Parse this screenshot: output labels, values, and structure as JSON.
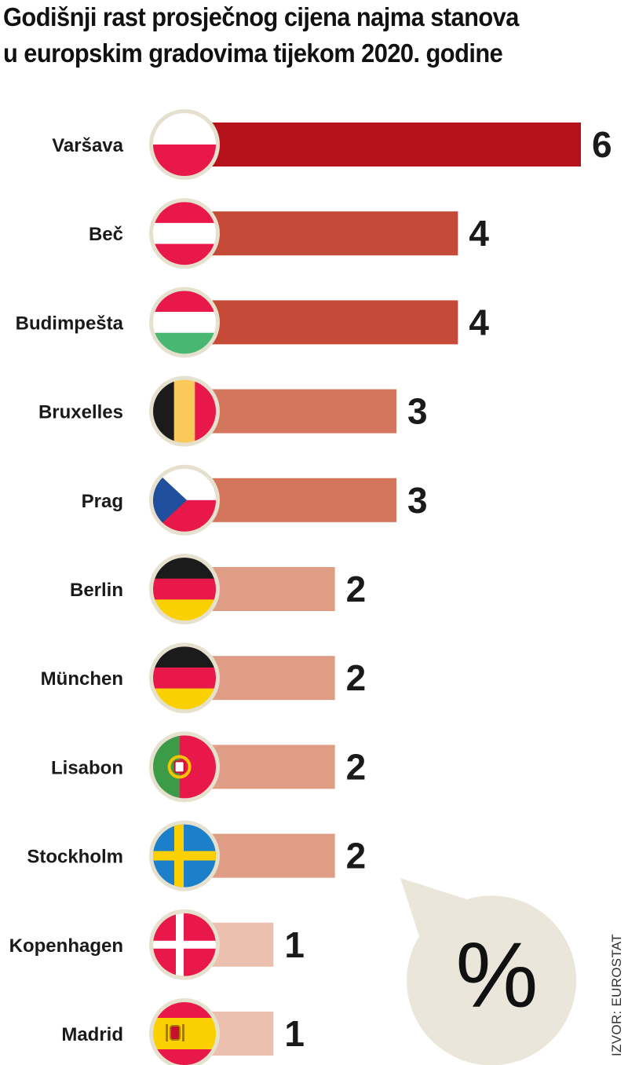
{
  "title_lines": [
    "Godišnji rast prosječnog cijena najma stanova",
    "u europskim gradovima tijekom 2020. godine"
  ],
  "unit_symbol": "%",
  "source": "IZVOR: EUROSTAT",
  "colors": {
    "bar_6": "#b5121b",
    "bar_4": "#c54a37",
    "bar_3": "#d4755e",
    "bar_2": "#e09d86",
    "bar_1": "#ebc0ae",
    "flag_ring": "#e6e0cf",
    "bubble": "#ebe6da"
  },
  "chart_data": {
    "type": "bar",
    "orientation": "horizontal",
    "title": "Godišnji rast prosječnog cijena najma stanova u europskim gradovima tijekom 2020. godine",
    "unit": "%",
    "categories": [
      "Varšava",
      "Beč",
      "Budimpešta",
      "Bruxelles",
      "Prag",
      "Berlin",
      "München",
      "Lisabon",
      "Stockholm",
      "Kopenhagen",
      "Madrid"
    ],
    "values": [
      6,
      4,
      4,
      3,
      3,
      2,
      2,
      2,
      2,
      1,
      1
    ],
    "value_labels": [
      "6",
      "4",
      "4",
      "3",
      "3",
      "2",
      "2",
      "2",
      "2",
      "1",
      "1"
    ],
    "flags": [
      "poland-flag-icon",
      "austria-flag-icon",
      "hungary-flag-icon",
      "belgium-flag-icon",
      "czech-flag-icon",
      "germany-flag-icon",
      "germany-flag-icon",
      "portugal-flag-icon",
      "sweden-flag-icon",
      "denmark-flag-icon",
      "spain-flag-icon"
    ],
    "xlim": [
      0,
      6
    ],
    "grid": false,
    "legend": "none"
  }
}
